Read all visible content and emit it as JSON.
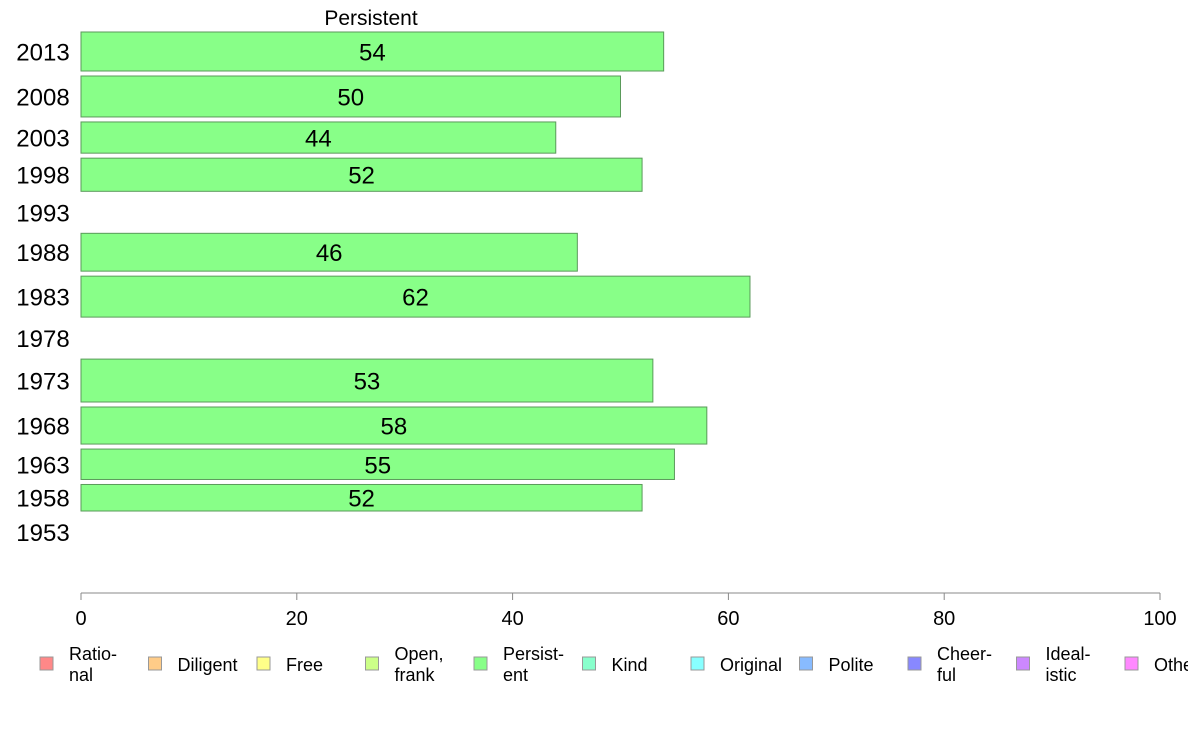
{
  "chart_data": {
    "type": "bar",
    "orientation": "horizontal",
    "title": "Persistent",
    "categories": [
      "2013",
      "2008",
      "2003",
      "1998",
      "1993",
      "1988",
      "1983",
      "1978",
      "1973",
      "1968",
      "1963",
      "1958",
      "1953"
    ],
    "values": [
      54,
      50,
      44,
      52,
      null,
      46,
      62,
      null,
      53,
      58,
      55,
      52,
      null
    ],
    "bar_weights": [
      1.0,
      1.05,
      0.8,
      0.85,
      0.0,
      0.97,
      1.05,
      0.0,
      1.1,
      0.95,
      0.78,
      0.68,
      0.0
    ],
    "xlim": [
      0,
      100
    ],
    "x_ticks": [
      0,
      20,
      40,
      60,
      80,
      100
    ],
    "xlabel": "",
    "ylabel": "",
    "grid": false,
    "legend_position": "bottom",
    "series_color": "#88ff88",
    "legend": [
      {
        "label": [
          "Ratio-",
          "nal"
        ],
        "color": "#ff8888"
      },
      {
        "label": [
          "Diligent"
        ],
        "color": "#ffcc88"
      },
      {
        "label": [
          "Free"
        ],
        "color": "#ffff88"
      },
      {
        "label": [
          "Open,",
          "frank"
        ],
        "color": "#ccff88"
      },
      {
        "label": [
          "Persist-",
          "ent"
        ],
        "color": "#88ff88"
      },
      {
        "label": [
          "Kind"
        ],
        "color": "#88ffcc"
      },
      {
        "label": [
          "Original"
        ],
        "color": "#88ffff"
      },
      {
        "label": [
          "Polite"
        ],
        "color": "#88bbff"
      },
      {
        "label": [
          "Cheer-",
          "ful"
        ],
        "color": "#8888ff"
      },
      {
        "label": [
          "Ideal-",
          "istic"
        ],
        "color": "#cc88ff"
      },
      {
        "label": [
          "Other"
        ],
        "color": "#ff88ff"
      }
    ]
  }
}
